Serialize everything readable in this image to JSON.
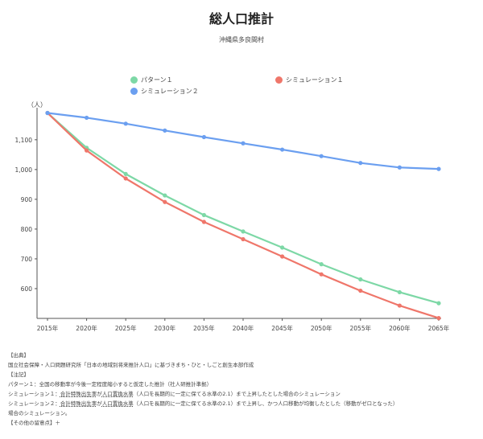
{
  "title": "総人口推計",
  "subtitle": "沖縄県多良間村",
  "chart_data": {
    "type": "line",
    "title": "総人口推計",
    "subtitle": "沖縄県多良間村",
    "ylabel": "（人）",
    "x": [
      "2015年",
      "2020年",
      "2025年",
      "2030年",
      "2035年",
      "2040年",
      "2045年",
      "2050年",
      "2055年",
      "2060年",
      "2065年"
    ],
    "ylim": [
      500,
      1200
    ],
    "yticks": [
      "600",
      "700",
      "800",
      "900",
      "1,000",
      "1,100"
    ],
    "yticks_values": [
      600,
      700,
      800,
      900,
      1000,
      1100
    ],
    "grid": false,
    "legend_position": "top",
    "series": [
      {
        "name": "パターン１",
        "color": "#7dd8a6",
        "values": [
          1190,
          1073,
          985,
          913,
          847,
          792,
          738,
          682,
          631,
          588,
          551
        ]
      },
      {
        "name": "シミュレーション１",
        "color": "#ef766a",
        "values": [
          1190,
          1064,
          970,
          891,
          824,
          766,
          708,
          648,
          593,
          543,
          501
        ]
      },
      {
        "name": "シミュレーション２",
        "color": "#6b9ff0",
        "values": [
          1190,
          1174,
          1154,
          1131,
          1109,
          1088,
          1067,
          1045,
          1022,
          1007,
          1002
        ]
      }
    ]
  },
  "notes": {
    "source_heading": "【出典】",
    "source_text": "国立社会保障・人口問題研究所「日本の地域別将来推計人口」に基づきまち・ひと・しごと創生本部作成",
    "notes_heading": "【注記】",
    "pattern1": "パターン１：全国の移動率が今後一定程度縮小すると仮定した推計（社人研推計準拠）",
    "sim1_prefix": "シミュレーション１：",
    "sim1_u1": "合計特殊出生率",
    "sim1_mid": "が",
    "sim1_u2": "人口置換水準",
    "sim1_rest": "（人口を長期的に一定に保てる水準の2.1）まで上昇したとした場合のシミュレーション",
    "sim2_prefix": "シミュレーション２：",
    "sim2_u1": "合計特殊出生率",
    "sim2_mid": "が",
    "sim2_u2": "人口置換水準",
    "sim2_rest": "（人口を長期的に一定に保てる水準の2.1）まで上昇し、かつ人口移動が均衡したとした（移動がゼロとなった）",
    "sim2_rest2": "場合のシミュレーション。",
    "more": "【その他の留意点】＋"
  }
}
